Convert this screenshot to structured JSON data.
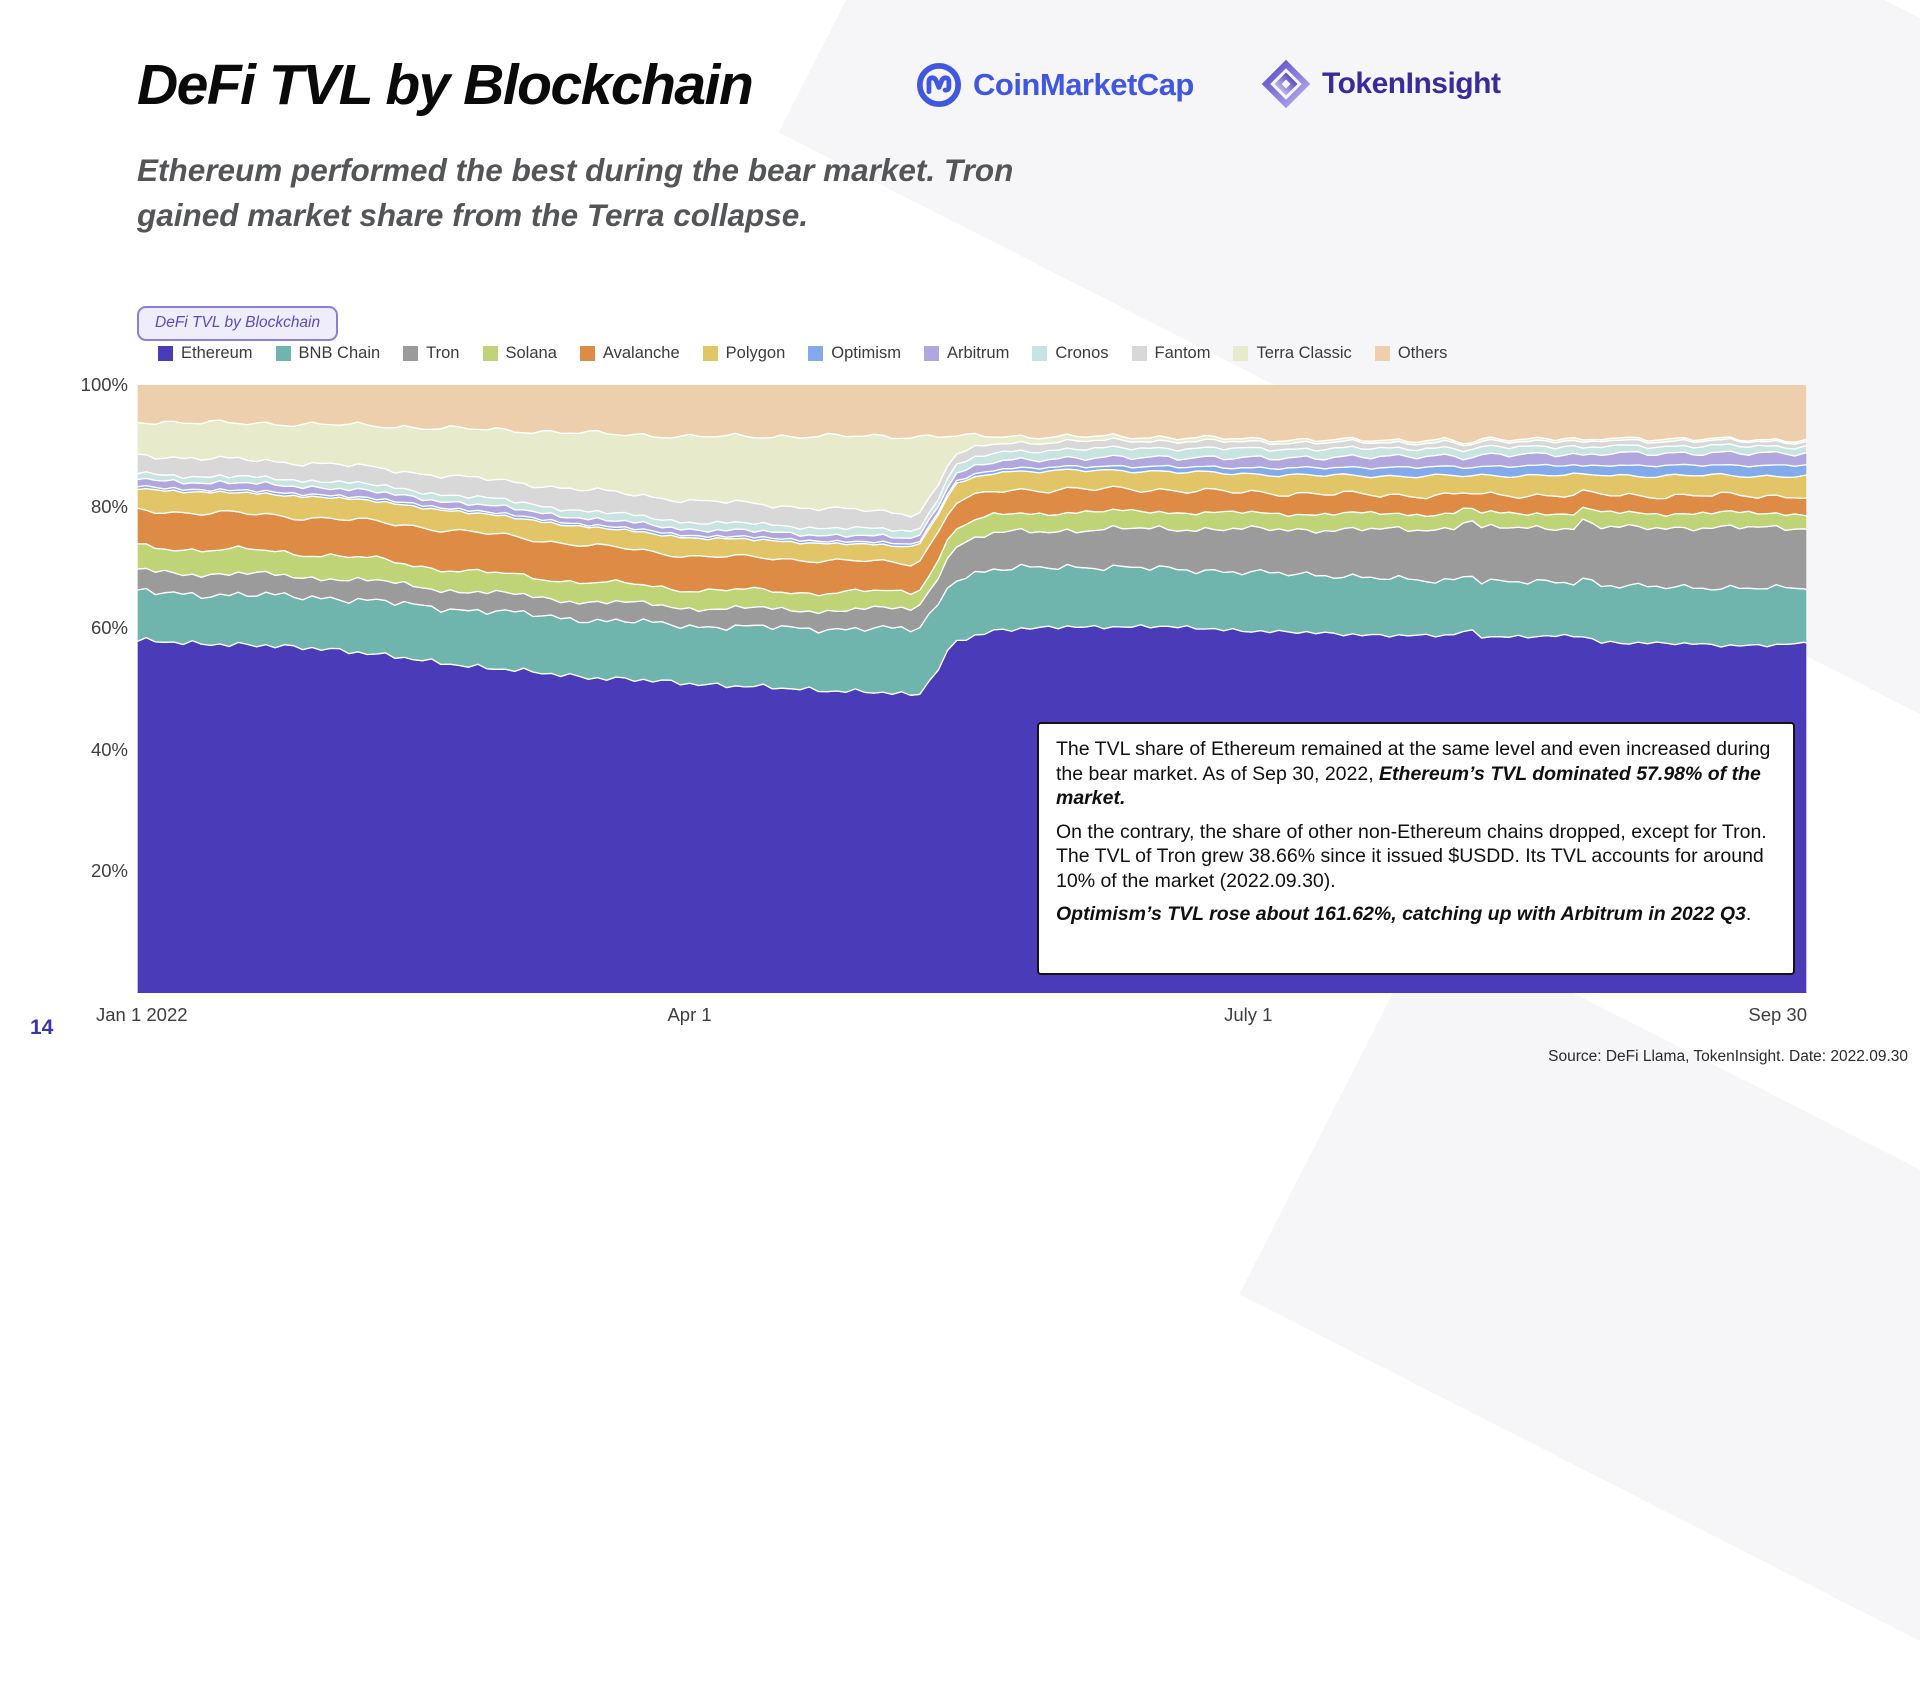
{
  "header": {
    "title": "DeFi TVL by Blockchain",
    "subtitle_line1": "Ethereum performed the best during the bear market. Tron",
    "subtitle_line2": "gained market share from the Terra collapse.",
    "logos": {
      "coinmarketcap": "CoinMarketCap",
      "tokeninsight": "TokenInsight"
    }
  },
  "chart_tag": "DeFi TVL by Blockchain",
  "footer": {
    "page_number": "14",
    "source": "Source: DeFi Llama, TokenInsight. Date: 2022.09.30"
  },
  "annotation": {
    "paragraphs": [
      [
        {
          "t": "The TVL share of Ethereum remained at the same level and even increased during the bear market. As of Sep 30, 2022, ",
          "b": false
        },
        {
          "t": "Ethereum’s TVL dominated 57.98% of the market.",
          "b": true
        }
      ],
      [
        {
          "t": "On the contrary, the share of other non-Ethereum chains dropped, except for Tron. The TVL of Tron grew 38.66% since it issued $USDD. Its TVL accounts for around 10% of the market (2022.09.30).",
          "b": false
        }
      ],
      [
        {
          "t": "Optimism’s TVL rose about 161.62%, catching up with Arbitrum in 2022 Q3",
          "b": true
        },
        {
          "t": ".",
          "b": false
        }
      ]
    ]
  },
  "chart_data": {
    "type": "area",
    "stacked": true,
    "normalized_percent": true,
    "title": "DeFi TVL by Blockchain",
    "x_unit": "days since Jan 1 2022",
    "ylim": [
      0,
      100
    ],
    "grid": false,
    "legend_position": "top",
    "y_ticks": [
      {
        "value": 100,
        "label": "100%"
      },
      {
        "value": 80,
        "label": "80%"
      },
      {
        "value": 60,
        "label": "60%"
      },
      {
        "value": 40,
        "label": "40%"
      },
      {
        "value": 20,
        "label": "20%"
      }
    ],
    "x_ticks": [
      {
        "day": 0,
        "label": "Jan 1 2022",
        "align": "left"
      },
      {
        "day": 90,
        "label": "Apr 1",
        "align": "center"
      },
      {
        "day": 181,
        "label": "July 1",
        "align": "center"
      },
      {
        "day": 272,
        "label": "Sep 30",
        "align": "right"
      }
    ],
    "days": [
      0,
      15,
      31,
      45,
      59,
      75,
      90,
      105,
      120,
      127,
      130,
      133,
      140,
      151,
      166,
      181,
      196,
      211,
      214,
      217,
      219,
      226,
      234,
      236,
      238,
      245,
      258,
      272
    ],
    "series": [
      {
        "name": "Ethereum",
        "color": "#4a3cb9",
        "values": [
          58,
          57.5,
          57,
          55.5,
          54,
          52,
          51,
          50.5,
          50,
          49.5,
          53,
          58.5,
          60,
          60.5,
          60,
          59,
          58.5,
          58.5,
          58.5,
          58,
          58.5,
          59,
          59,
          57.5,
          57.8,
          58,
          57.5,
          57.98
        ]
      },
      {
        "name": "BNB Chain",
        "color": "#6fb5ae",
        "values": [
          8,
          8.2,
          8.5,
          9,
          9.5,
          9.5,
          9.5,
          10,
          10.5,
          11,
          11,
          10.5,
          10,
          10,
          9.5,
          9.5,
          9.5,
          9,
          9,
          9,
          9,
          9,
          9,
          9.5,
          9.4,
          9.3,
          9.5,
          9.3
        ]
      },
      {
        "name": "Tron",
        "color": "#9b9b9b",
        "values": [
          3.5,
          3.4,
          3.3,
          3.2,
          3,
          3,
          3,
          3,
          3.2,
          3.5,
          4.5,
          5.5,
          6,
          6,
          6.5,
          7,
          7.5,
          8.5,
          8.5,
          8.7,
          8.7,
          9,
          9,
          9.5,
          9.5,
          9.7,
          10,
          10
        ]
      },
      {
        "name": "Solana",
        "color": "#bfd377",
        "values": [
          4,
          4,
          3.8,
          3.5,
          3.3,
          3.2,
          3,
          3,
          2.9,
          2.8,
          2.8,
          2.9,
          3,
          3,
          2.8,
          2.6,
          2.6,
          2.5,
          2.5,
          1.8,
          2.4,
          2.4,
          2.4,
          1.8,
          2.4,
          2.4,
          2.4,
          2.4
        ]
      },
      {
        "name": "Avalanche",
        "color": "#de8b45",
        "values": [
          6,
          6,
          6,
          6.5,
          6.5,
          6,
          5.5,
          5.5,
          5,
          4.8,
          4.5,
          4.2,
          4,
          3.8,
          3.6,
          3.4,
          3.2,
          3,
          3,
          2.4,
          3,
          3,
          3,
          2.4,
          3,
          2.9,
          2.9,
          2.9
        ]
      },
      {
        "name": "Polygon",
        "color": "#e2c566",
        "values": [
          3.5,
          3.4,
          3.5,
          3.3,
          3.2,
          3,
          3,
          2.9,
          2.8,
          2.8,
          2.9,
          3,
          3.1,
          3.1,
          3,
          3,
          3,
          3.2,
          3.2,
          2.6,
          3.2,
          3.3,
          3.3,
          2.7,
          3.3,
          3.3,
          3.3,
          3.3
        ]
      },
      {
        "name": "Optimism",
        "color": "#83abec",
        "values": [
          0.4,
          0.4,
          0.4,
          0.4,
          0.4,
          0.4,
          0.4,
          0.4,
          0.4,
          0.4,
          0.4,
          0.5,
          0.5,
          0.6,
          0.8,
          1,
          1.3,
          1.5,
          1.5,
          1.3,
          1.5,
          1.6,
          1.6,
          1.4,
          1.6,
          1.7,
          1.7,
          1.8
        ]
      },
      {
        "name": "Arbitrum",
        "color": "#b2a6df",
        "values": [
          1.2,
          1.2,
          1.2,
          1.1,
          1.1,
          1,
          1,
          1,
          1,
          1,
          1.1,
          1.3,
          1.3,
          1.4,
          1.5,
          1.6,
          1.7,
          1.8,
          1.8,
          1.5,
          1.8,
          1.9,
          1.9,
          1.6,
          1.9,
          2,
          2,
          2
        ]
      },
      {
        "name": "Cronos",
        "color": "#c8e4e1",
        "values": [
          1,
          1,
          1.1,
          1.1,
          1.2,
          1.2,
          1.2,
          1.2,
          1.2,
          1.2,
          1.3,
          1.4,
          1.4,
          1.5,
          1.5,
          1.5,
          1.4,
          1.3,
          1.3,
          1.1,
          1.3,
          1.3,
          1.3,
          1.1,
          1.2,
          1.2,
          1.2,
          1.1
        ]
      },
      {
        "name": "Fantom",
        "color": "#d8d8d8",
        "values": [
          3,
          2.9,
          2.8,
          3,
          3.2,
          3.5,
          3.5,
          3.3,
          3,
          2.8,
          2.2,
          1.8,
          1.5,
          1.3,
          1.2,
          1.1,
          1,
          0.9,
          0.9,
          0.8,
          0.9,
          0.9,
          0.9,
          0.8,
          0.9,
          0.9,
          0.8,
          0.8
        ]
      },
      {
        "name": "Terra Classic",
        "color": "#e7ebcc",
        "values": [
          5.5,
          6,
          6.5,
          7.5,
          8.5,
          9.5,
          10.5,
          11.5,
          12.5,
          13,
          9,
          3,
          1.2,
          0.8,
          0.6,
          0.5,
          0.4,
          0.4,
          0.4,
          0.3,
          0.4,
          0.4,
          0.4,
          0.3,
          0.4,
          0.4,
          0.3,
          0.3
        ]
      },
      {
        "name": "Others",
        "color": "#edcfad",
        "values": [
          6,
          6.3,
          6.5,
          7,
          7.5,
          8,
          8.5,
          8.5,
          8.5,
          8.6,
          8.5,
          8.5,
          8.5,
          8.5,
          8.5,
          8.8,
          9,
          9,
          9,
          9.5,
          9,
          8.8,
          8.8,
          9.5,
          8.8,
          8.8,
          9,
          9.1
        ]
      }
    ]
  }
}
